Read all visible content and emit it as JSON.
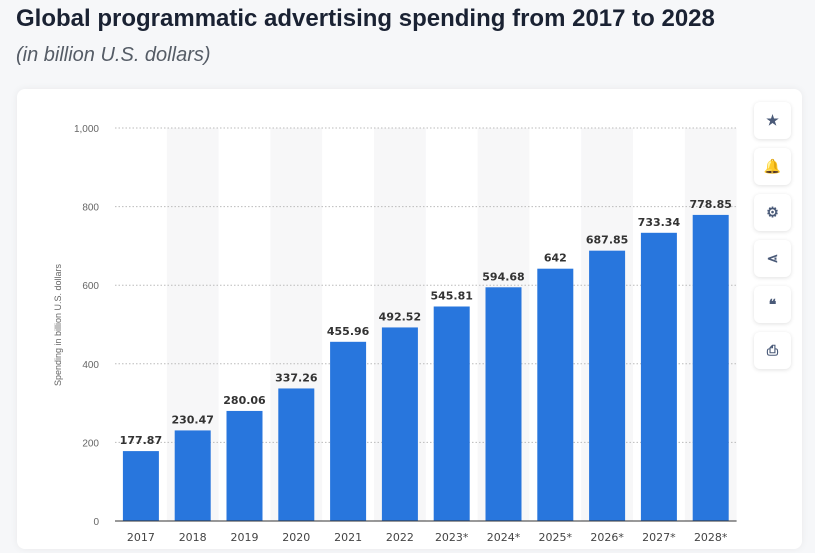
{
  "header": {
    "title": "Global programmatic advertising spending from 2017 to 2028",
    "subtitle": "(in billion U.S. dollars)"
  },
  "toolbar": [
    {
      "icon": "star-icon",
      "glyph": "★"
    },
    {
      "icon": "bell-icon",
      "glyph": "🔔"
    },
    {
      "icon": "gear-icon",
      "glyph": "⚙"
    },
    {
      "icon": "share-icon",
      "glyph": "⋖"
    },
    {
      "icon": "quote-icon",
      "glyph": "❝"
    },
    {
      "icon": "print-icon",
      "glyph": "⎙"
    }
  ],
  "chart_data": {
    "type": "bar",
    "categories": [
      "2017",
      "2018",
      "2019",
      "2020",
      "2021",
      "2022",
      "2023*",
      "2024*",
      "2025*",
      "2026*",
      "2027*",
      "2028*"
    ],
    "values": [
      177.87,
      230.47,
      280.06,
      337.26,
      455.96,
      492.52,
      545.81,
      594.68,
      642,
      687.85,
      733.34,
      778.85
    ],
    "data_labels": [
      "177.87",
      "230.47",
      "280.06",
      "337.26",
      "455.96",
      "492.52",
      "545.81",
      "594.68",
      "642",
      "687.85",
      "733.34",
      "778.85"
    ],
    "ylabel": "Spending in billion U.S. dollars",
    "ylim": [
      0,
      1000
    ],
    "yticks": [
      0,
      200,
      400,
      600,
      800,
      1000
    ],
    "ytick_labels": [
      "0",
      "200",
      "400",
      "600",
      "800",
      "1,000"
    ],
    "grid": true,
    "bar_color": "#2876dd"
  }
}
